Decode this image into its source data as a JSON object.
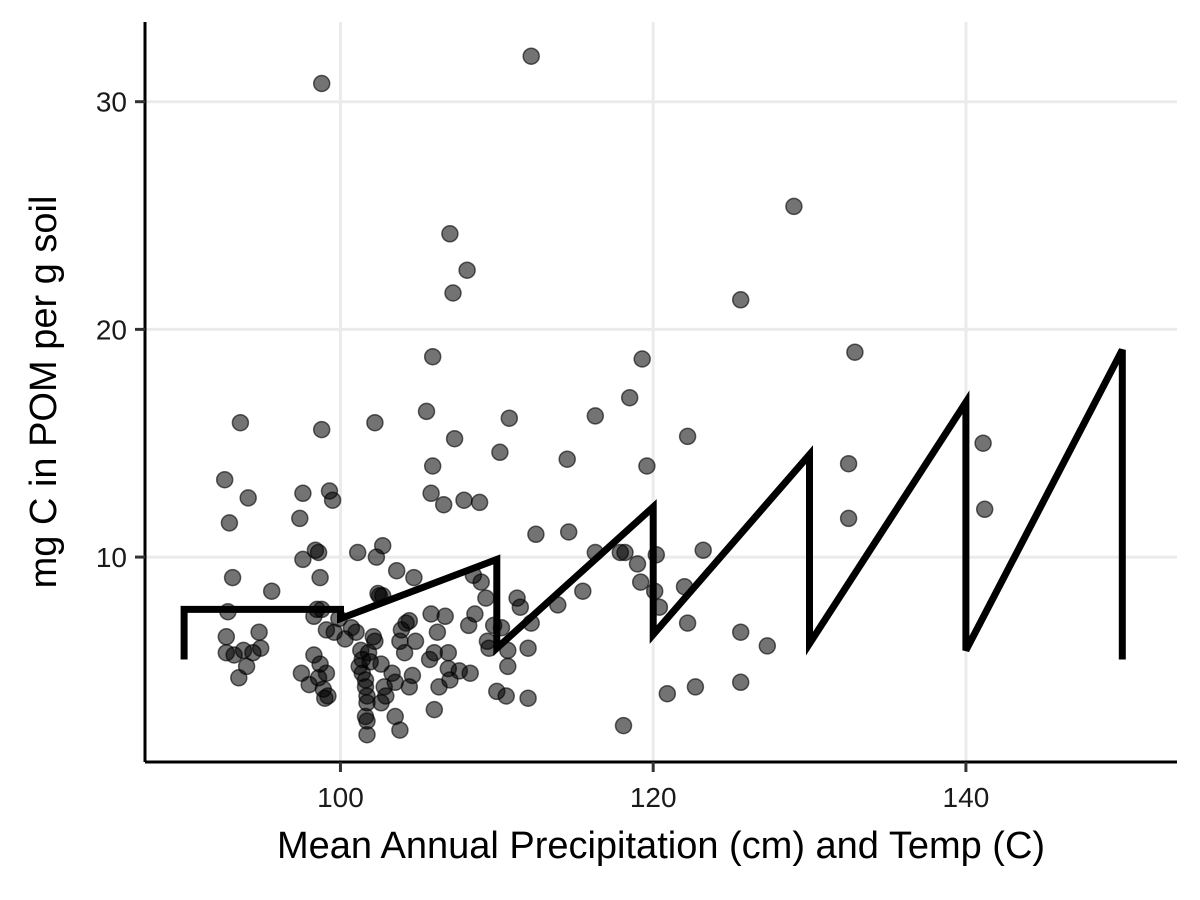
{
  "chart_data": {
    "type": "scatter",
    "title": "",
    "xlabel": "Mean Annual Precipitation (cm) and Temp (C)",
    "ylabel": "mg C in POM per g soil",
    "xlim": [
      87.5,
      153.5
    ],
    "ylim": [
      1,
      33.5
    ],
    "x_ticks": [
      100,
      120,
      140
    ],
    "y_ticks": [
      10,
      20,
      30
    ],
    "grid": true,
    "legend": "none",
    "colors": {
      "points": "#000000",
      "line": "#000000",
      "grid": "#ebebeb",
      "axis": "#000000"
    },
    "points": [
      [
        92.6,
        13.4
      ],
      [
        92.9,
        11.5
      ],
      [
        93.1,
        9.1
      ],
      [
        93.6,
        15.9
      ],
      [
        92.8,
        7.6
      ],
      [
        92.7,
        6.5
      ],
      [
        92.7,
        5.8
      ],
      [
        93.2,
        5.7
      ],
      [
        93.5,
        4.7
      ],
      [
        94.0,
        5.2
      ],
      [
        93.8,
        5.9
      ],
      [
        94.1,
        12.6
      ],
      [
        94.4,
        5.8
      ],
      [
        94.8,
        6.7
      ],
      [
        94.9,
        6.0
      ],
      [
        95.6,
        8.5
      ],
      [
        97.4,
        11.7
      ],
      [
        97.6,
        12.8
      ],
      [
        97.6,
        9.9
      ],
      [
        97.5,
        4.9
      ],
      [
        98.0,
        4.4
      ],
      [
        98.3,
        7.4
      ],
      [
        98.3,
        5.7
      ],
      [
        98.4,
        10.3
      ],
      [
        98.6,
        10.2
      ],
      [
        98.7,
        9.1
      ],
      [
        98.8,
        15.6
      ],
      [
        98.8,
        30.8
      ],
      [
        98.5,
        7.7
      ],
      [
        98.8,
        7.7
      ],
      [
        98.7,
        5.3
      ],
      [
        98.6,
        4.7
      ],
      [
        98.9,
        4.2
      ],
      [
        99.2,
        3.9
      ],
      [
        99.0,
        3.8
      ],
      [
        99.1,
        4.9
      ],
      [
        99.1,
        6.8
      ],
      [
        99.3,
        12.9
      ],
      [
        99.5,
        12.5
      ],
      [
        99.6,
        6.7
      ],
      [
        99.9,
        7.3
      ],
      [
        100.3,
        6.4
      ],
      [
        100.7,
        6.9
      ],
      [
        101.1,
        10.2
      ],
      [
        101.0,
        6.7
      ],
      [
        101.2,
        5.2
      ],
      [
        101.3,
        5.9
      ],
      [
        101.4,
        5.5
      ],
      [
        101.4,
        4.9
      ],
      [
        101.6,
        4.6
      ],
      [
        101.6,
        4.3
      ],
      [
        101.7,
        3.9
      ],
      [
        101.7,
        3.6
      ],
      [
        101.6,
        3.0
      ],
      [
        101.7,
        2.8
      ],
      [
        101.7,
        2.2
      ],
      [
        101.8,
        5.8
      ],
      [
        101.9,
        5.4
      ],
      [
        102.1,
        6.5
      ],
      [
        102.2,
        6.3
      ],
      [
        102.2,
        15.9
      ],
      [
        102.3,
        10.0
      ],
      [
        102.5,
        8.3
      ],
      [
        102.4,
        8.4
      ],
      [
        102.7,
        8.3
      ],
      [
        102.7,
        10.5
      ],
      [
        102.6,
        5.3
      ],
      [
        102.8,
        4.3
      ],
      [
        102.9,
        3.9
      ],
      [
        102.6,
        3.6
      ],
      [
        103.3,
        4.9
      ],
      [
        103.5,
        4.5
      ],
      [
        103.5,
        3.0
      ],
      [
        103.8,
        2.4
      ],
      [
        103.6,
        9.4
      ],
      [
        103.8,
        6.3
      ],
      [
        103.9,
        6.8
      ],
      [
        104.1,
        5.8
      ],
      [
        104.2,
        7.1
      ],
      [
        104.4,
        7.2
      ],
      [
        104.4,
        4.3
      ],
      [
        104.6,
        4.8
      ],
      [
        104.7,
        9.1
      ],
      [
        104.8,
        6.3
      ],
      [
        105.5,
        16.4
      ],
      [
        105.9,
        14.0
      ],
      [
        105.8,
        12.8
      ],
      [
        105.9,
        18.8
      ],
      [
        105.8,
        7.5
      ],
      [
        105.7,
        5.5
      ],
      [
        106.0,
        5.8
      ],
      [
        106.0,
        3.3
      ],
      [
        106.2,
        6.7
      ],
      [
        106.3,
        4.3
      ],
      [
        106.6,
        12.3
      ],
      [
        106.7,
        7.4
      ],
      [
        106.9,
        5.8
      ],
      [
        106.9,
        5.1
      ],
      [
        107.0,
        4.6
      ],
      [
        107.0,
        24.2
      ],
      [
        107.2,
        21.6
      ],
      [
        107.3,
        15.2
      ],
      [
        107.6,
        5.0
      ],
      [
        107.9,
        12.5
      ],
      [
        108.1,
        22.6
      ],
      [
        108.2,
        7.0
      ],
      [
        108.3,
        4.9
      ],
      [
        108.5,
        9.2
      ],
      [
        108.6,
        7.5
      ],
      [
        108.9,
        12.4
      ],
      [
        109.0,
        8.9
      ],
      [
        109.3,
        8.2
      ],
      [
        109.4,
        6.3
      ],
      [
        109.5,
        6.0
      ],
      [
        109.8,
        7.0
      ],
      [
        110.0,
        4.1
      ],
      [
        110.2,
        14.6
      ],
      [
        110.3,
        6.9
      ],
      [
        110.6,
        3.9
      ],
      [
        110.7,
        5.2
      ],
      [
        110.7,
        5.9
      ],
      [
        110.8,
        16.1
      ],
      [
        111.3,
        8.2
      ],
      [
        111.5,
        7.8
      ],
      [
        112.0,
        6.0
      ],
      [
        112.0,
        3.8
      ],
      [
        112.2,
        7.1
      ],
      [
        112.5,
        11.0
      ],
      [
        112.2,
        32.0
      ],
      [
        113.9,
        7.9
      ],
      [
        114.5,
        14.3
      ],
      [
        114.6,
        11.1
      ],
      [
        115.5,
        8.5
      ],
      [
        116.3,
        16.2
      ],
      [
        116.3,
        10.2
      ],
      [
        117.9,
        10.2
      ],
      [
        118.2,
        10.2
      ],
      [
        118.5,
        17.0
      ],
      [
        118.1,
        2.6
      ],
      [
        119.0,
        9.7
      ],
      [
        119.2,
        8.9
      ],
      [
        119.3,
        18.7
      ],
      [
        119.6,
        14.0
      ],
      [
        120.1,
        8.5
      ],
      [
        120.2,
        10.1
      ],
      [
        120.4,
        7.8
      ],
      [
        120.9,
        4.0
      ],
      [
        122.0,
        8.7
      ],
      [
        122.2,
        15.3
      ],
      [
        122.2,
        7.1
      ],
      [
        122.7,
        4.3
      ],
      [
        123.2,
        10.3
      ],
      [
        125.6,
        6.7
      ],
      [
        125.6,
        4.5
      ],
      [
        125.6,
        21.3
      ],
      [
        127.3,
        6.1
      ],
      [
        129.0,
        25.4
      ],
      [
        132.5,
        14.1
      ],
      [
        132.5,
        11.7
      ],
      [
        132.9,
        19.0
      ],
      [
        141.1,
        15.0
      ],
      [
        141.2,
        12.1
      ]
    ],
    "line": {
      "x": [
        90,
        90,
        100,
        100,
        110,
        110,
        120,
        120,
        130,
        130,
        140,
        140,
        150,
        150
      ],
      "y": [
        5.5,
        7.7,
        7.7,
        7.3,
        9.9,
        6.0,
        12.2,
        6.6,
        14.5,
        6.2,
        16.8,
        5.9,
        19.1,
        5.5
      ]
    }
  }
}
